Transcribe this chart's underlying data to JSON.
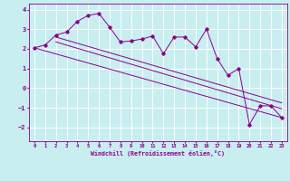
{
  "xlabel": "Windchill (Refroidissement éolien,°C)",
  "bg_color": "#c8eef0",
  "line_color": "#8b008b",
  "grid_color": "#ffffff",
  "xlim": [
    -0.5,
    23.5
  ],
  "ylim": [
    -2.7,
    4.3
  ],
  "xticks": [
    0,
    1,
    2,
    3,
    4,
    5,
    6,
    7,
    8,
    9,
    10,
    11,
    12,
    13,
    14,
    15,
    16,
    17,
    18,
    19,
    20,
    21,
    22,
    23
  ],
  "yticks": [
    -2,
    -1,
    0,
    1,
    2,
    3,
    4
  ],
  "series1": {
    "x": [
      0,
      1,
      2,
      3,
      4,
      5,
      6,
      7,
      8,
      9,
      10,
      11,
      12,
      13,
      14,
      15,
      16,
      17,
      18,
      19,
      20,
      21,
      22,
      23
    ],
    "y": [
      2.05,
      2.2,
      2.7,
      2.85,
      3.4,
      3.7,
      3.8,
      3.1,
      2.35,
      2.4,
      2.5,
      2.65,
      1.75,
      2.6,
      2.6,
      2.1,
      3.0,
      1.5,
      0.65,
      1.0,
      -1.85,
      -0.9,
      -0.9,
      -1.5
    ]
  },
  "line1": {
    "x": [
      2,
      23
    ],
    "y": [
      2.6,
      -0.75
    ]
  },
  "line2": {
    "x": [
      2,
      23
    ],
    "y": [
      2.35,
      -1.05
    ]
  },
  "line3": {
    "x": [
      0,
      23
    ],
    "y": [
      2.05,
      -1.5
    ]
  }
}
